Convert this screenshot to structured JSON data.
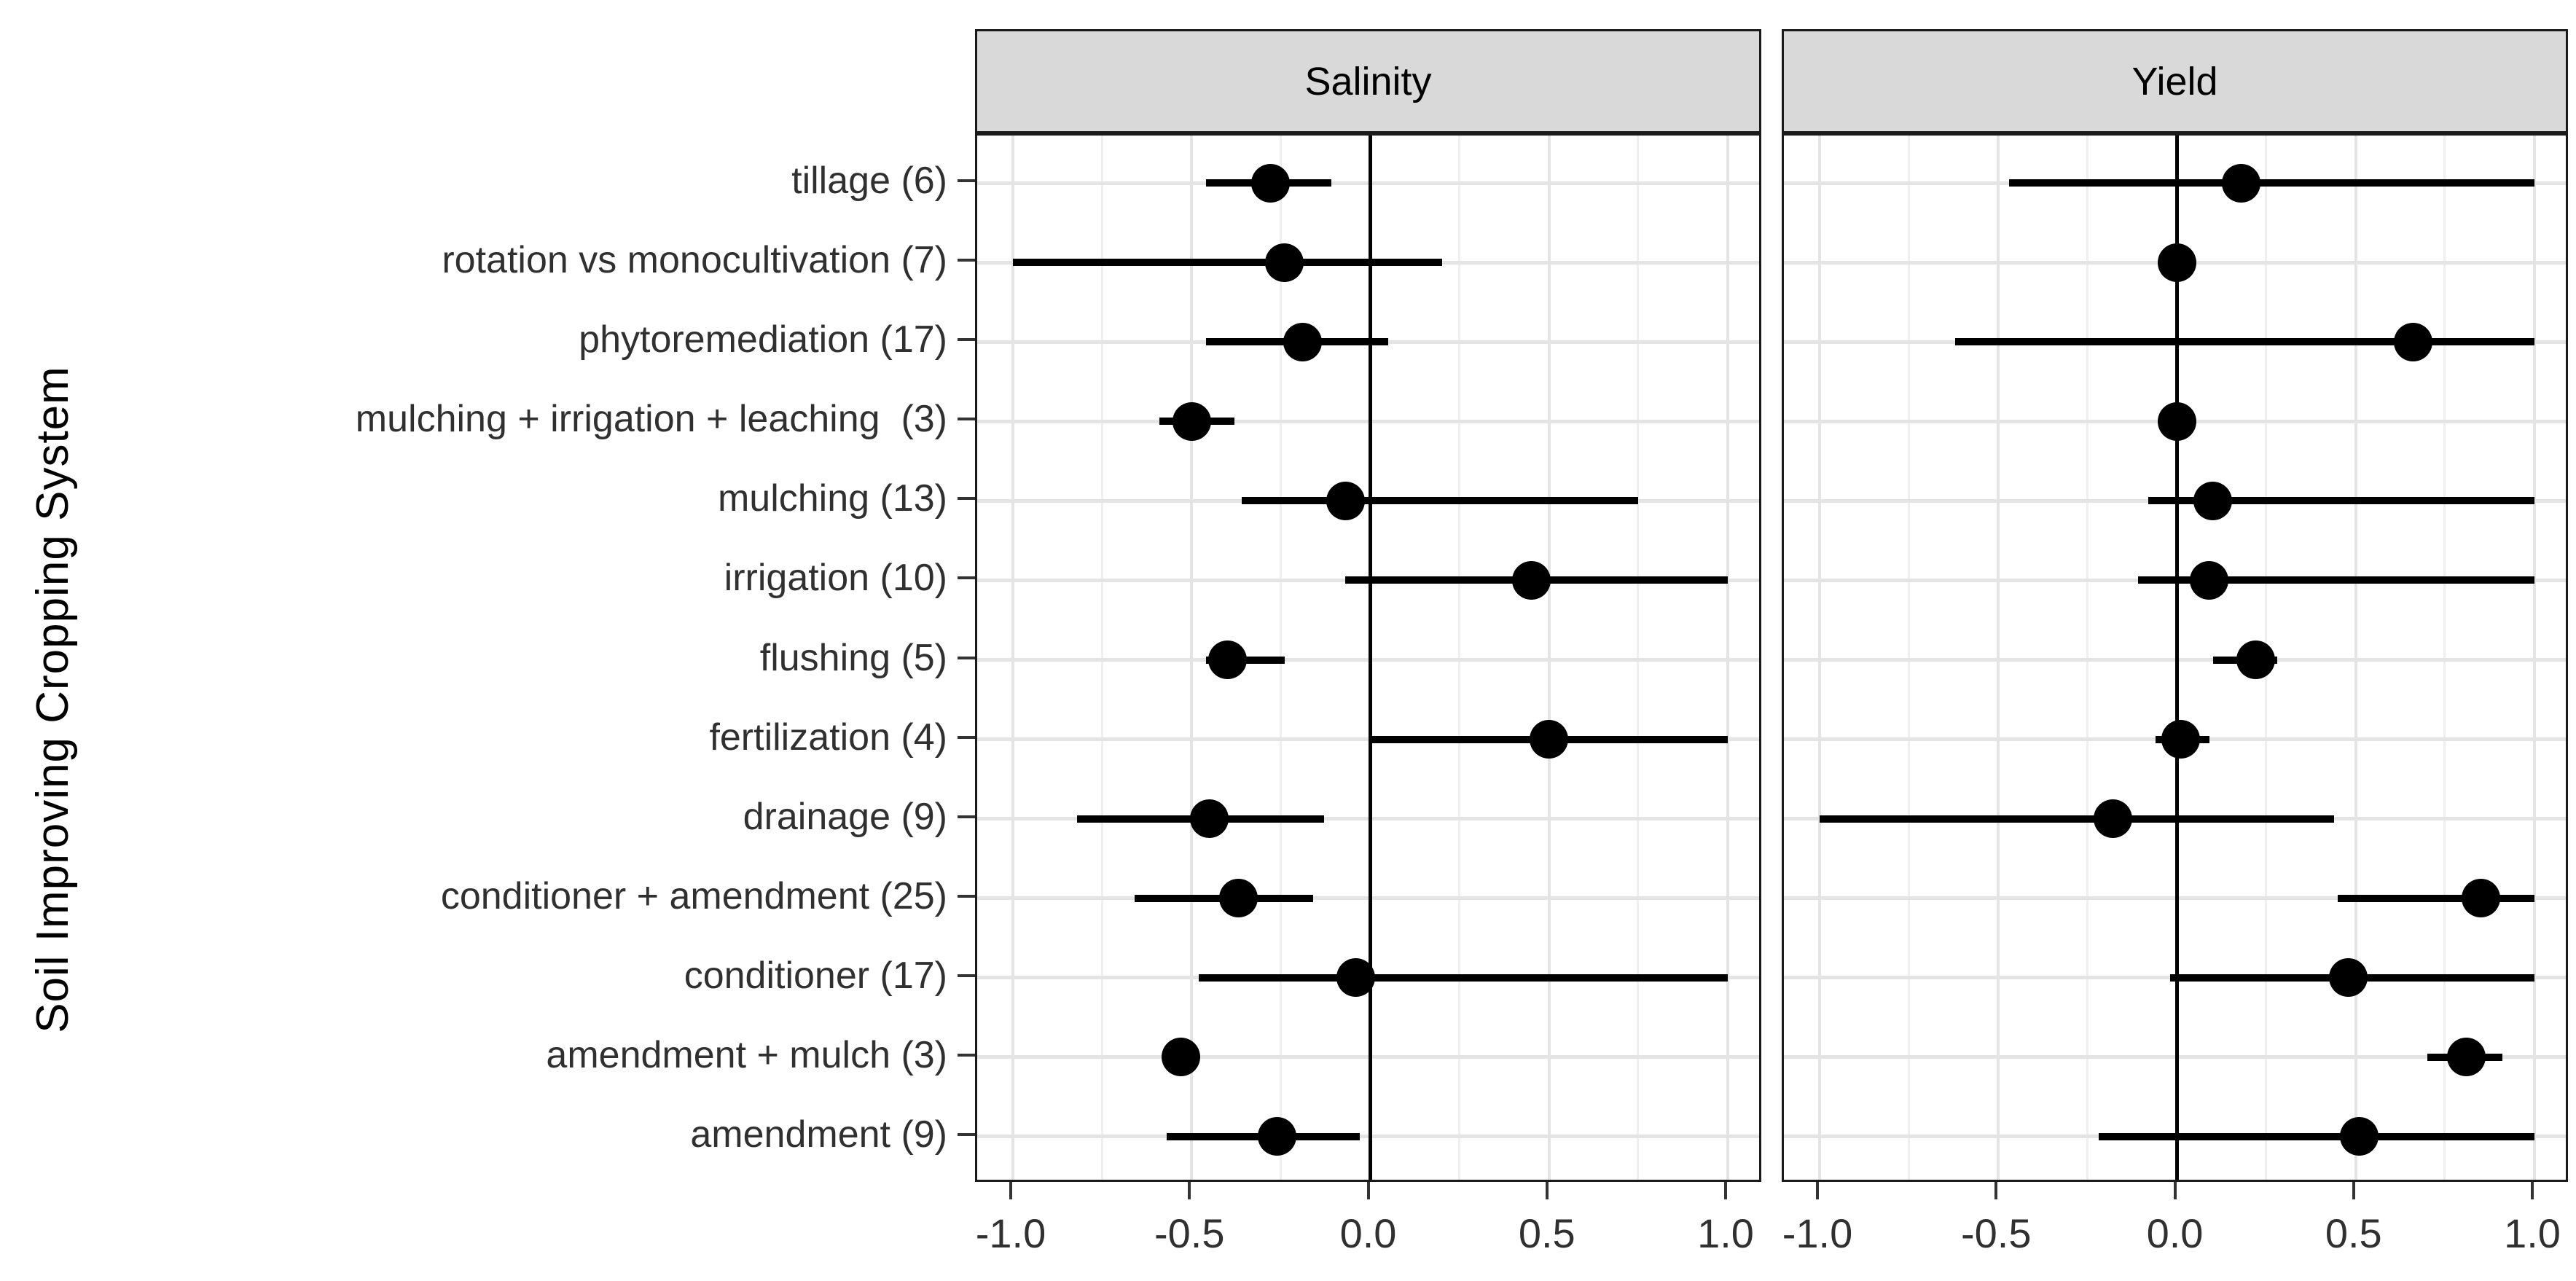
{
  "chart_data": {
    "type": "scatter",
    "subtype": "forest-dot-whisker",
    "title": "",
    "ylabel": "Soil Improving Cropping System",
    "xlabel": "",
    "facets": [
      "Salinity",
      "Yield"
    ],
    "grid": "on",
    "legend": "none",
    "zero_reference_line": true,
    "xlim": [
      -1.1,
      1.1
    ],
    "x_ticks": [
      -1.0,
      -0.5,
      0.0,
      0.5,
      1.0
    ],
    "x_tick_labels": [
      "-1.0",
      "-0.5",
      "0.0",
      "0.5",
      "1.0"
    ],
    "categories": [
      "tillage (6)",
      "rotation vs monocultivation (7)",
      "phytoremediation (17)",
      "mulching + irrigation + leaching  (3)",
      "mulching (13)",
      "irrigation (10)",
      "flushing (5)",
      "fertilization (4)",
      "drainage (9)",
      "conditioner + amendment (25)",
      "conditioner (17)",
      "amendment + mulch (3)",
      "amendment (9)"
    ],
    "series": [
      {
        "name": "Salinity",
        "points": [
          {
            "est": -0.28,
            "lo": -0.46,
            "hi": -0.11
          },
          {
            "est": -0.24,
            "lo": -1.0,
            "hi": 0.2
          },
          {
            "est": -0.19,
            "lo": -0.46,
            "hi": 0.05
          },
          {
            "est": -0.5,
            "lo": -0.59,
            "hi": -0.38
          },
          {
            "est": -0.07,
            "lo": -0.36,
            "hi": 0.75
          },
          {
            "est": 0.45,
            "lo": -0.07,
            "hi": 1.0
          },
          {
            "est": -0.4,
            "lo": -0.46,
            "hi": -0.24
          },
          {
            "est": 0.5,
            "lo": 0.0,
            "hi": 1.0
          },
          {
            "est": -0.45,
            "lo": -0.82,
            "hi": -0.13
          },
          {
            "est": -0.37,
            "lo": -0.66,
            "hi": -0.16
          },
          {
            "est": -0.04,
            "lo": -0.48,
            "hi": 1.0
          },
          {
            "est": -0.53,
            "lo": -0.58,
            "hi": -0.48
          },
          {
            "est": -0.26,
            "lo": -0.57,
            "hi": -0.03
          }
        ]
      },
      {
        "name": "Yield",
        "points": [
          {
            "est": 0.18,
            "lo": -0.47,
            "hi": 1.0
          },
          {
            "est": 0.0,
            "lo": -0.02,
            "hi": 0.02
          },
          {
            "est": 0.66,
            "lo": -0.62,
            "hi": 1.0
          },
          {
            "est": 0.0,
            "lo": -0.02,
            "hi": 0.02
          },
          {
            "est": 0.1,
            "lo": -0.08,
            "hi": 1.0
          },
          {
            "est": 0.09,
            "lo": -0.11,
            "hi": 1.0
          },
          {
            "est": 0.22,
            "lo": 0.1,
            "hi": 0.28
          },
          {
            "est": 0.01,
            "lo": -0.06,
            "hi": 0.09
          },
          {
            "est": -0.18,
            "lo": -1.0,
            "hi": 0.44
          },
          {
            "est": 0.85,
            "lo": 0.45,
            "hi": 1.0
          },
          {
            "est": 0.48,
            "lo": -0.02,
            "hi": 1.0
          },
          {
            "est": 0.81,
            "lo": 0.7,
            "hi": 0.91
          },
          {
            "est": 0.51,
            "lo": -0.22,
            "hi": 1.0
          }
        ]
      }
    ],
    "colors": {
      "point": "#000000",
      "whisker": "#000000",
      "zero_line": "#000000",
      "panel_border": "#1a1a1a",
      "strip_fill": "#d9d9d9",
      "strip_border": "#1a1a1a",
      "grid_major": "#e4e4e4",
      "grid_minor": "#efefef",
      "axis_text": "#303030",
      "strip_text": "#000000",
      "tick_mark": "#333333"
    }
  }
}
